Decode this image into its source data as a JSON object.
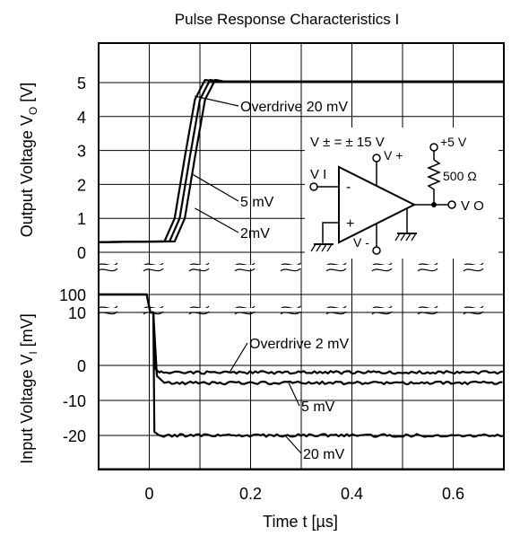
{
  "chart_data": {
    "type": "line",
    "title": "Pulse Response Characteristics I",
    "xlabel": "Time t [µs]",
    "xlim": [
      -0.1,
      0.7
    ],
    "x_ticks": [
      "0",
      "0.2",
      "0.4",
      "0.6"
    ],
    "x_tick_values": [
      0,
      0.2,
      0.4,
      0.6
    ],
    "grid": true,
    "legend": "none",
    "upper": {
      "ylabel_main": "Output Voltage V",
      "ylabel_sub": "O",
      "ylabel_unit": " [V]",
      "ylim": [
        0,
        5.5
      ],
      "y_ticks": [
        "5",
        "4",
        "3",
        "2",
        "1",
        "0"
      ],
      "y_tick_values": [
        5,
        4,
        3,
        2,
        1,
        0
      ],
      "series": [
        {
          "name": "Overdrive 20 mV",
          "x": [
            -0.1,
            0.03,
            0.05,
            0.07,
            0.09,
            0.11,
            0.13,
            0.7
          ],
          "y": [
            0.3,
            0.32,
            1.0,
            2.8,
            4.5,
            5.08,
            5.03,
            5.03
          ]
        },
        {
          "name": "5 mV",
          "x": [
            -0.1,
            0.04,
            0.06,
            0.08,
            0.1,
            0.12,
            0.14,
            0.7
          ],
          "y": [
            0.3,
            0.32,
            1.0,
            2.8,
            4.5,
            5.08,
            5.03,
            5.03
          ]
        },
        {
          "name": "2mV",
          "x": [
            -0.1,
            0.05,
            0.07,
            0.09,
            0.11,
            0.13,
            0.15,
            0.7
          ],
          "y": [
            0.3,
            0.32,
            1.0,
            2.8,
            4.5,
            5.08,
            5.03,
            5.03
          ]
        }
      ],
      "annotations": [
        {
          "text": "Overdrive 20 mV",
          "x": 0.1,
          "y": 4.6
        },
        {
          "text": "5 mV",
          "x": 0.085,
          "y": 2.3
        },
        {
          "text": "2mV",
          "x": 0.09,
          "y": 1.3
        }
      ]
    },
    "lower": {
      "ylabel_main": "Input Voltage V",
      "ylabel_sub": "I",
      "ylabel_unit": " [mV]",
      "y_ticks": [
        "100",
        "10",
        "0",
        "-10",
        "-20"
      ],
      "y_tick_values": [
        100,
        10,
        0,
        -10,
        -20
      ],
      "series": [
        {
          "name": "Overdrive 2 mV",
          "x": [
            -0.1,
            -0.005,
            0.002,
            0.008,
            0.012,
            0.02,
            0.7
          ],
          "y": [
            100,
            100,
            90,
            10,
            -1,
            -2,
            -2
          ]
        },
        {
          "name": "5 mV",
          "x": [
            -0.1,
            -0.005,
            0.002,
            0.008,
            0.015,
            0.03,
            0.7
          ],
          "y": [
            100,
            100,
            90,
            10,
            -3,
            -5,
            -5
          ]
        },
        {
          "name": "20 mV",
          "x": [
            -0.1,
            -0.005,
            0.002,
            0.008,
            0.01,
            0.02,
            0.7
          ],
          "y": [
            100,
            100,
            90,
            10,
            -19,
            -20,
            -20
          ]
        }
      ],
      "annotations": [
        {
          "text": "Overdrive 2 mV",
          "x": 0.1,
          "y": 7
        },
        {
          "text": "5 mV",
          "x": 0.3,
          "y": -11
        },
        {
          "text": "20 mV",
          "x": 0.3,
          "y": -24
        }
      ]
    },
    "inset": {
      "supply": "V ± = ± 15 V",
      "vplus": "V +",
      "vminus": "V -",
      "vcc": "+5 V",
      "resistor": "500 Ω",
      "vin": "V I",
      "vout": "V O",
      "minus_sign": "-",
      "plus_sign": "+"
    },
    "colors": {
      "line": "#000000",
      "grid": "#000000",
      "background": "#ffffff"
    }
  }
}
